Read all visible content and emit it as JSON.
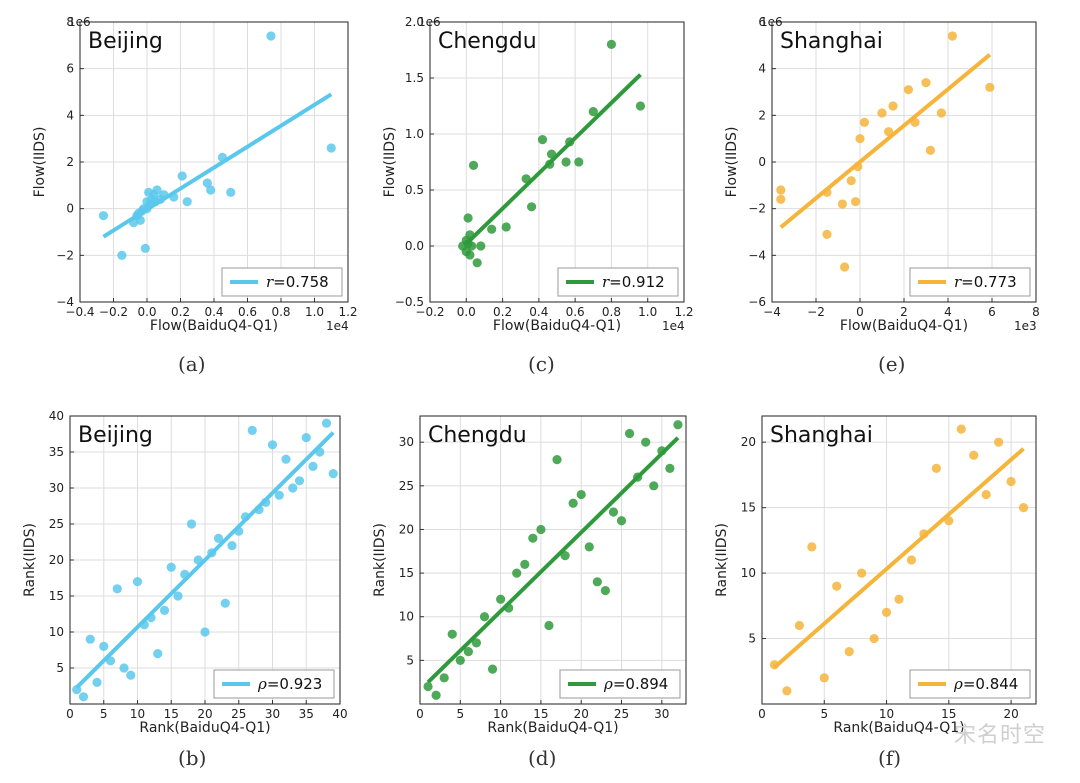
{
  "chart_data": [
    {
      "id": "a",
      "type": "scatter",
      "caption": "(a)",
      "title": "Beijing",
      "xlabel": "Flow(BaiduQ4-Q1)",
      "ylabel": "Flow(IIDS)",
      "x_exponent": "1e4",
      "y_exponent": "1e6",
      "xlim": [
        -0.4,
        1.2
      ],
      "ylim": [
        -4,
        8
      ],
      "xticks": [
        -0.4,
        -0.2,
        0.0,
        0.2,
        0.4,
        0.6,
        0.8,
        1.0,
        1.2
      ],
      "xticklabels": [
        "−0.4",
        "−0.2",
        "0.0",
        "0.2",
        "0.4",
        "0.6",
        "0.8",
        "1.0",
        "1.2"
      ],
      "yticks": [
        -4,
        -2,
        0,
        2,
        4,
        6,
        8
      ],
      "yticklabels": [
        "−4",
        "−2",
        "0",
        "2",
        "4",
        "6",
        "8"
      ],
      "grid": true,
      "color": "#5ac8ec",
      "points": [
        [
          -0.26,
          -0.3
        ],
        [
          -0.15,
          -2.0
        ],
        [
          -0.08,
          -0.6
        ],
        [
          -0.06,
          -0.3
        ],
        [
          -0.05,
          -0.2
        ],
        [
          -0.04,
          -0.5
        ],
        [
          -0.03,
          -0.1
        ],
        [
          -0.02,
          0.0
        ],
        [
          -0.01,
          -1.7
        ],
        [
          0.0,
          0.0
        ],
        [
          0.0,
          0.3
        ],
        [
          0.01,
          0.7
        ],
        [
          0.02,
          0.2
        ],
        [
          0.03,
          0.4
        ],
        [
          0.04,
          0.6
        ],
        [
          0.05,
          0.3
        ],
        [
          0.06,
          0.8
        ],
        [
          0.08,
          0.4
        ],
        [
          0.1,
          0.6
        ],
        [
          0.16,
          0.5
        ],
        [
          0.21,
          1.4
        ],
        [
          0.24,
          0.3
        ],
        [
          0.36,
          1.1
        ],
        [
          0.38,
          0.8
        ],
        [
          0.45,
          2.2
        ],
        [
          0.5,
          0.7
        ],
        [
          0.74,
          7.4
        ],
        [
          1.1,
          2.6
        ]
      ],
      "fit": [
        [
          -0.26,
          -1.2
        ],
        [
          1.1,
          4.9
        ]
      ],
      "legend_label": "r=0.758",
      "legend_symbol": "r",
      "legend_value": "=0.758",
      "legend_loc": "lower right"
    },
    {
      "id": "c",
      "type": "scatter",
      "caption": "(c)",
      "title": "Chengdu",
      "xlabel": "Flow(BaiduQ4-Q1)",
      "ylabel": "Flow(IIDS)",
      "x_exponent": "1e4",
      "y_exponent": "1e6",
      "xlim": [
        -0.2,
        1.2
      ],
      "ylim": [
        -0.5,
        2.0
      ],
      "xticks": [
        -0.2,
        0.0,
        0.2,
        0.4,
        0.6,
        0.8,
        1.0,
        1.2
      ],
      "xticklabels": [
        "−0.2",
        "0.0",
        "0.2",
        "0.4",
        "0.6",
        "0.8",
        "1.0",
        "1.2"
      ],
      "yticks": [
        -0.5,
        0.0,
        0.5,
        1.0,
        1.5,
        2.0
      ],
      "yticklabels": [
        "−0.5",
        "0.0",
        "0.5",
        "1.0",
        "1.5",
        "2.0"
      ],
      "grid": true,
      "color": "#2f9a3b",
      "points": [
        [
          -0.02,
          0.0
        ],
        [
          0.0,
          -0.05
        ],
        [
          0.0,
          0.05
        ],
        [
          0.01,
          0.25
        ],
        [
          0.01,
          0.02
        ],
        [
          0.02,
          -0.08
        ],
        [
          0.02,
          0.1
        ],
        [
          0.03,
          0.0
        ],
        [
          0.04,
          0.72
        ],
        [
          0.06,
          -0.15
        ],
        [
          0.08,
          0.0
        ],
        [
          0.14,
          0.15
        ],
        [
          0.22,
          0.17
        ],
        [
          0.33,
          0.6
        ],
        [
          0.36,
          0.35
        ],
        [
          0.42,
          0.95
        ],
        [
          0.46,
          0.73
        ],
        [
          0.47,
          0.82
        ],
        [
          0.55,
          0.75
        ],
        [
          0.57,
          0.93
        ],
        [
          0.62,
          0.75
        ],
        [
          0.7,
          1.2
        ],
        [
          0.8,
          1.8
        ],
        [
          0.96,
          1.25
        ]
      ],
      "fit": [
        [
          0.0,
          0.02
        ],
        [
          0.96,
          1.53
        ]
      ],
      "legend_label": "r=0.912",
      "legend_symbol": "r",
      "legend_value": "=0.912",
      "legend_loc": "lower right"
    },
    {
      "id": "e",
      "type": "scatter",
      "caption": "(e)",
      "title": "Shanghai",
      "xlabel": "Flow(BaiduQ4-Q1)",
      "ylabel": "Flow(IIDS)",
      "x_exponent": "1e3",
      "y_exponent": "1e6",
      "xlim": [
        -4,
        8
      ],
      "ylim": [
        -6,
        6
      ],
      "xticks": [
        -4,
        -2,
        0,
        2,
        4,
        6,
        8
      ],
      "xticklabels": [
        "−4",
        "−2",
        "0",
        "2",
        "4",
        "6",
        "8"
      ],
      "yticks": [
        -6,
        -4,
        -2,
        0,
        2,
        4,
        6
      ],
      "yticklabels": [
        "−6",
        "−4",
        "−2",
        "0",
        "2",
        "4",
        "6"
      ],
      "grid": true,
      "color": "#f5b43a",
      "points": [
        [
          -3.6,
          -1.2
        ],
        [
          -3.6,
          -1.6
        ],
        [
          -1.5,
          -1.3
        ],
        [
          -1.5,
          -3.1
        ],
        [
          -0.8,
          -1.8
        ],
        [
          -0.7,
          -4.5
        ],
        [
          -0.4,
          -0.8
        ],
        [
          -0.2,
          -1.7
        ],
        [
          -0.1,
          -0.2
        ],
        [
          0.0,
          1.0
        ],
        [
          0.2,
          1.7
        ],
        [
          1.0,
          2.1
        ],
        [
          1.3,
          1.3
        ],
        [
          1.5,
          2.4
        ],
        [
          2.2,
          3.1
        ],
        [
          2.5,
          1.7
        ],
        [
          3.0,
          3.4
        ],
        [
          3.2,
          0.5
        ],
        [
          3.7,
          2.1
        ],
        [
          4.2,
          5.4
        ],
        [
          5.9,
          3.2
        ]
      ],
      "fit": [
        [
          -3.6,
          -2.8
        ],
        [
          5.9,
          4.6
        ]
      ],
      "legend_label": "r=0.773",
      "legend_symbol": "r",
      "legend_value": "=0.773",
      "legend_loc": "lower right"
    },
    {
      "id": "b",
      "type": "scatter",
      "caption": "(b)",
      "title": "Beijing",
      "xlabel": "Rank(BaiduQ4-Q1)",
      "ylabel": "Rank(IIDS)",
      "xlim": [
        0,
        40
      ],
      "ylim": [
        0,
        40
      ],
      "xticks": [
        0,
        5,
        10,
        15,
        20,
        25,
        30,
        35,
        40
      ],
      "xticklabels": [
        "0",
        "5",
        "10",
        "15",
        "20",
        "25",
        "30",
        "35",
        "40"
      ],
      "yticks": [
        5,
        10,
        15,
        20,
        25,
        30,
        35,
        40
      ],
      "yticklabels": [
        "5",
        "10",
        "15",
        "20",
        "25",
        "30",
        "35",
        "40"
      ],
      "grid": true,
      "color": "#5ac8ec",
      "points": [
        [
          1,
          2
        ],
        [
          2,
          1
        ],
        [
          3,
          9
        ],
        [
          4,
          3
        ],
        [
          5,
          8
        ],
        [
          6,
          6
        ],
        [
          7,
          16
        ],
        [
          8,
          5
        ],
        [
          9,
          4
        ],
        [
          10,
          17
        ],
        [
          11,
          11
        ],
        [
          12,
          12
        ],
        [
          13,
          7
        ],
        [
          14,
          13
        ],
        [
          15,
          19
        ],
        [
          16,
          15
        ],
        [
          17,
          18
        ],
        [
          18,
          25
        ],
        [
          19,
          20
        ],
        [
          20,
          10
        ],
        [
          21,
          21
        ],
        [
          22,
          23
        ],
        [
          23,
          14
        ],
        [
          24,
          22
        ],
        [
          25,
          24
        ],
        [
          26,
          26
        ],
        [
          27,
          38
        ],
        [
          28,
          27
        ],
        [
          29,
          28
        ],
        [
          30,
          36
        ],
        [
          31,
          29
        ],
        [
          32,
          34
        ],
        [
          33,
          30
        ],
        [
          34,
          31
        ],
        [
          35,
          37
        ],
        [
          36,
          33
        ],
        [
          37,
          35
        ],
        [
          38,
          39
        ],
        [
          39,
          32
        ]
      ],
      "fit": [
        [
          1,
          2.3
        ],
        [
          39,
          37.7
        ]
      ],
      "legend_label": "ρ=0.923",
      "legend_symbol": "ρ",
      "legend_value": "=0.923",
      "legend_loc": "lower right"
    },
    {
      "id": "d",
      "type": "scatter",
      "caption": "(d)",
      "title": "Chengdu",
      "xlabel": "Rank(BaiduQ4-Q1)",
      "ylabel": "Rank(IIDS)",
      "xlim": [
        0,
        33
      ],
      "ylim": [
        0,
        33
      ],
      "xticks": [
        0,
        5,
        10,
        15,
        20,
        25,
        30
      ],
      "xticklabels": [
        "0",
        "5",
        "10",
        "15",
        "20",
        "25",
        "30"
      ],
      "yticks": [
        5,
        10,
        15,
        20,
        25,
        30
      ],
      "yticklabels": [
        "5",
        "10",
        "15",
        "20",
        "25",
        "30"
      ],
      "grid": true,
      "color": "#2f9a3b",
      "points": [
        [
          1,
          2
        ],
        [
          2,
          1
        ],
        [
          3,
          3
        ],
        [
          4,
          8
        ],
        [
          5,
          5
        ],
        [
          6,
          6
        ],
        [
          7,
          7
        ],
        [
          8,
          10
        ],
        [
          9,
          4
        ],
        [
          10,
          12
        ],
        [
          11,
          11
        ],
        [
          12,
          15
        ],
        [
          13,
          16
        ],
        [
          14,
          19
        ],
        [
          15,
          20
        ],
        [
          16,
          9
        ],
        [
          17,
          28
        ],
        [
          18,
          17
        ],
        [
          19,
          23
        ],
        [
          20,
          24
        ],
        [
          21,
          18
        ],
        [
          22,
          14
        ],
        [
          23,
          13
        ],
        [
          24,
          22
        ],
        [
          25,
          21
        ],
        [
          26,
          31
        ],
        [
          27,
          26
        ],
        [
          28,
          30
        ],
        [
          29,
          25
        ],
        [
          30,
          29
        ],
        [
          31,
          27
        ],
        [
          32,
          32
        ]
      ],
      "fit": [
        [
          1,
          2.5
        ],
        [
          32,
          30.5
        ]
      ],
      "legend_label": "ρ=0.894",
      "legend_symbol": "ρ",
      "legend_value": "=0.894",
      "legend_loc": "lower right"
    },
    {
      "id": "f",
      "type": "scatter",
      "caption": "(f)",
      "title": "Shanghai",
      "xlabel": "Rank(BaiduQ4-Q1)",
      "ylabel": "Rank(IIDS)",
      "xlim": [
        0,
        22
      ],
      "ylim": [
        0,
        22
      ],
      "xticks": [
        0,
        5,
        10,
        15,
        20
      ],
      "xticklabels": [
        "0",
        "5",
        "10",
        "15",
        "20"
      ],
      "yticks": [
        5,
        10,
        15,
        20
      ],
      "yticklabels": [
        "5",
        "10",
        "15",
        "20"
      ],
      "grid": true,
      "color": "#f5b43a",
      "points": [
        [
          1,
          3
        ],
        [
          2,
          1
        ],
        [
          3,
          6
        ],
        [
          4,
          12
        ],
        [
          5,
          2
        ],
        [
          6,
          9
        ],
        [
          7,
          4
        ],
        [
          8,
          10
        ],
        [
          9,
          5
        ],
        [
          10,
          7
        ],
        [
          11,
          8
        ],
        [
          12,
          11
        ],
        [
          13,
          13
        ],
        [
          14,
          18
        ],
        [
          15,
          14
        ],
        [
          16,
          21
        ],
        [
          17,
          19
        ],
        [
          18,
          16
        ],
        [
          19,
          20
        ],
        [
          20,
          17
        ],
        [
          21,
          15
        ]
      ],
      "fit": [
        [
          1,
          2.8
        ],
        [
          21,
          19.5
        ]
      ],
      "legend_label": "ρ=0.844",
      "legend_symbol": "ρ",
      "legend_value": "=0.844",
      "legend_loc": "lower right"
    }
  ],
  "watermark": "宋名时空"
}
